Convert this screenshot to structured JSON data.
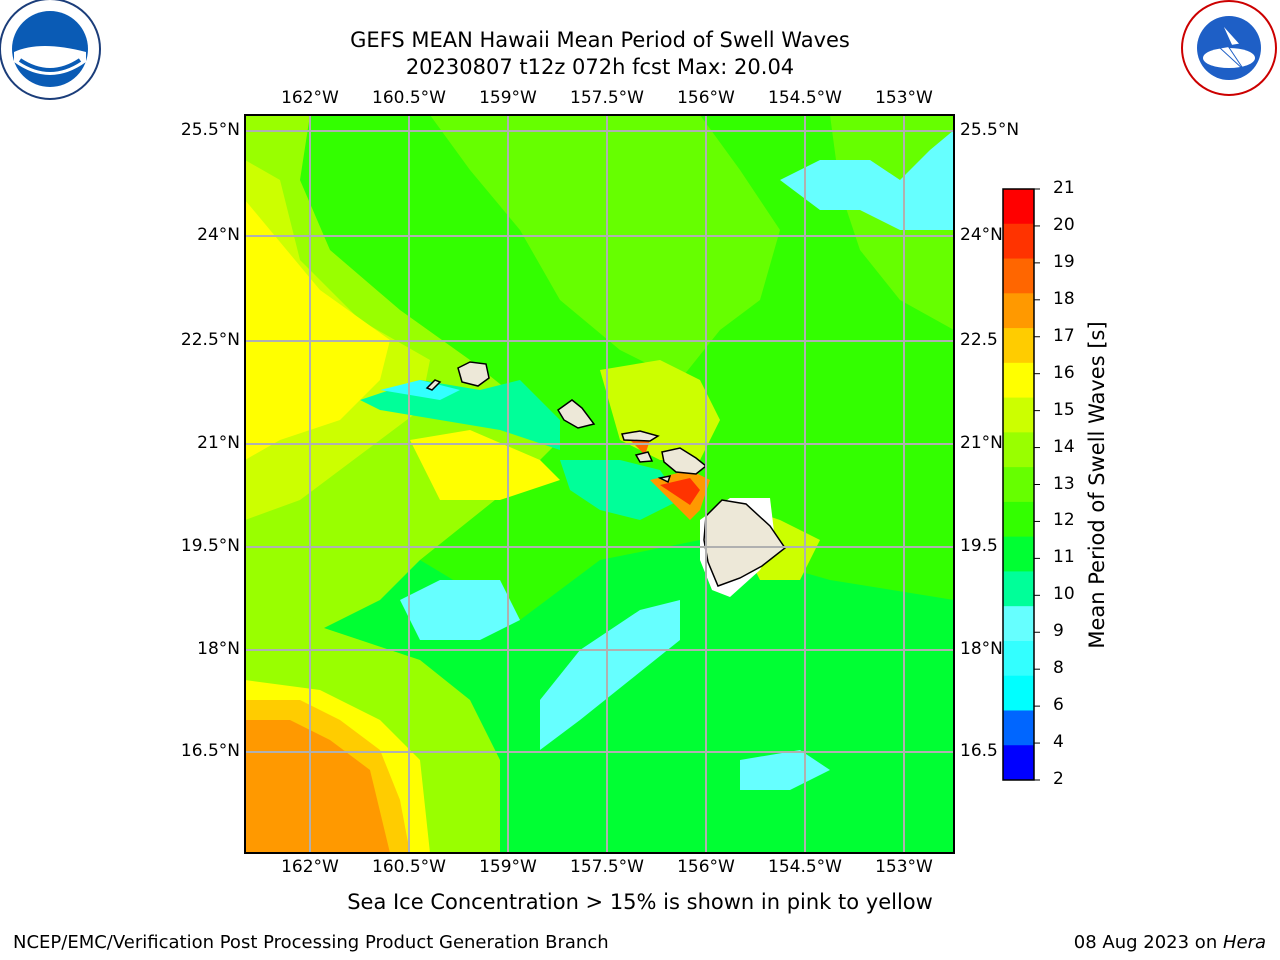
{
  "title": {
    "line1": "GEFS MEAN Hawaii Mean Period of Swell Waves",
    "line2": "20230807 t12z 072h fcst   Max: 20.04"
  },
  "logos": {
    "left": {
      "text": "NOAA",
      "icon": "noaa-logo"
    },
    "right": {
      "text": "NATIONAL WEATHER SERVICE",
      "icon": "nws-logo"
    }
  },
  "map": {
    "lon_labels": [
      "162°W",
      "160.5°W",
      "159°W",
      "157.5°W",
      "156°W",
      "154.5°W",
      "153°W"
    ],
    "lat_labels": [
      "25.5°N",
      "24°N",
      "22.5°N",
      "21°N",
      "19.5°N",
      "18°N",
      "16.5°N"
    ],
    "lat_labels_right": [
      "25.5°N",
      "24°N",
      "22.5",
      "21°N",
      "19.5",
      "18°N",
      "16.5"
    ]
  },
  "colorbar": {
    "label": "Mean Period of Swell Waves [s]",
    "ticks": [
      "21",
      "20",
      "19",
      "18",
      "17",
      "16",
      "15",
      "14",
      "13",
      "12",
      "11",
      "10",
      "9",
      "8",
      "6",
      "4",
      "2"
    ],
    "colors": [
      "#ff0000",
      "#ff3300",
      "#ff6600",
      "#ff9900",
      "#ffcc00",
      "#ffff00",
      "#ccff00",
      "#99ff00",
      "#66ff00",
      "#33ff00",
      "#00ff33",
      "#00ff99",
      "#66ffff",
      "#33ffff",
      "#00ffff",
      "#0066ff",
      "#0000ff"
    ]
  },
  "caption": "Sea Ice Concentration > 15% is shown in pink to yellow",
  "footer": {
    "left": "NCEP/EMC/Verification Post Processing Product Generation Branch",
    "right_prefix": "08 Aug 2023 on ",
    "right_host": "Hera"
  }
}
